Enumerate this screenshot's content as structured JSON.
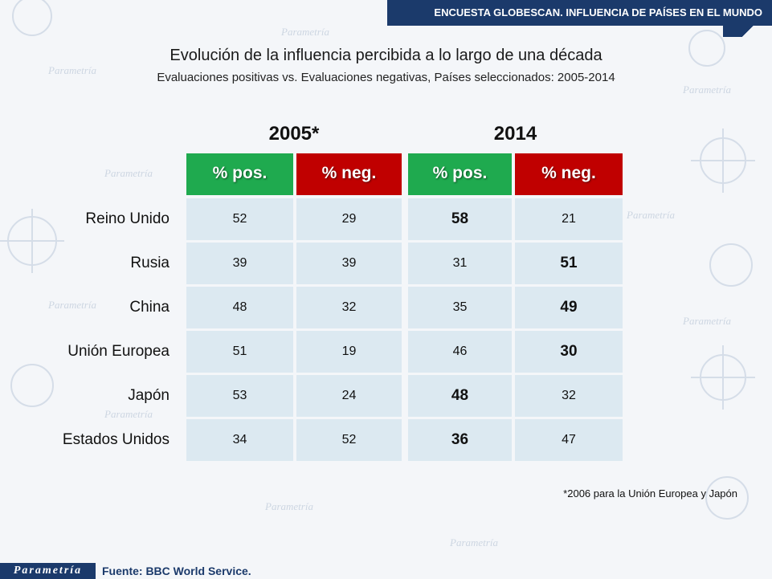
{
  "header": {
    "label": "ENCUESTA GLOBESCAN. INFLUENCIA DE PAÍSES EN EL MUNDO"
  },
  "footer": {
    "logo_text": "Parametría",
    "source": "Fuente: BBC World Service."
  },
  "background_watermark": "Parametría",
  "chart_data": {
    "type": "table",
    "title": "Evolución de la influencia percibida a lo largo de una década",
    "subtitle": "Evaluaciones positivas vs. Evaluaciones negativas, Países seleccionados: 2005-2014",
    "groups": [
      "2005*",
      "2014"
    ],
    "columns": [
      "% pos.",
      "% neg.",
      "% pos.",
      "% neg."
    ],
    "colors": {
      "pos": "#1faa4f",
      "neg": "#c00000",
      "cell": "#dce9f1",
      "brand": "#1b3a6b"
    },
    "rows": [
      {
        "label": "Reino Unido",
        "values": [
          "52",
          "29",
          "58",
          "21"
        ],
        "bold": [
          false,
          false,
          true,
          false
        ]
      },
      {
        "label": "Rusia",
        "values": [
          "39",
          "39",
          "31",
          "51"
        ],
        "bold": [
          false,
          false,
          false,
          true
        ]
      },
      {
        "label": "China",
        "values": [
          "48",
          "32",
          "35",
          "49"
        ],
        "bold": [
          false,
          false,
          false,
          true
        ]
      },
      {
        "label": "Unión Europea",
        "values": [
          "51",
          "19",
          "46",
          "30"
        ],
        "bold": [
          false,
          false,
          false,
          true
        ]
      },
      {
        "label": "Japón",
        "values": [
          "53",
          "24",
          "48",
          "32"
        ],
        "bold": [
          false,
          false,
          true,
          false
        ]
      },
      {
        "label": "Estados Unidos",
        "values": [
          "34",
          "52",
          "36",
          "47"
        ],
        "bold": [
          false,
          false,
          true,
          false
        ]
      }
    ],
    "footnote": "*2006 para la Unión Europea y Japón"
  }
}
